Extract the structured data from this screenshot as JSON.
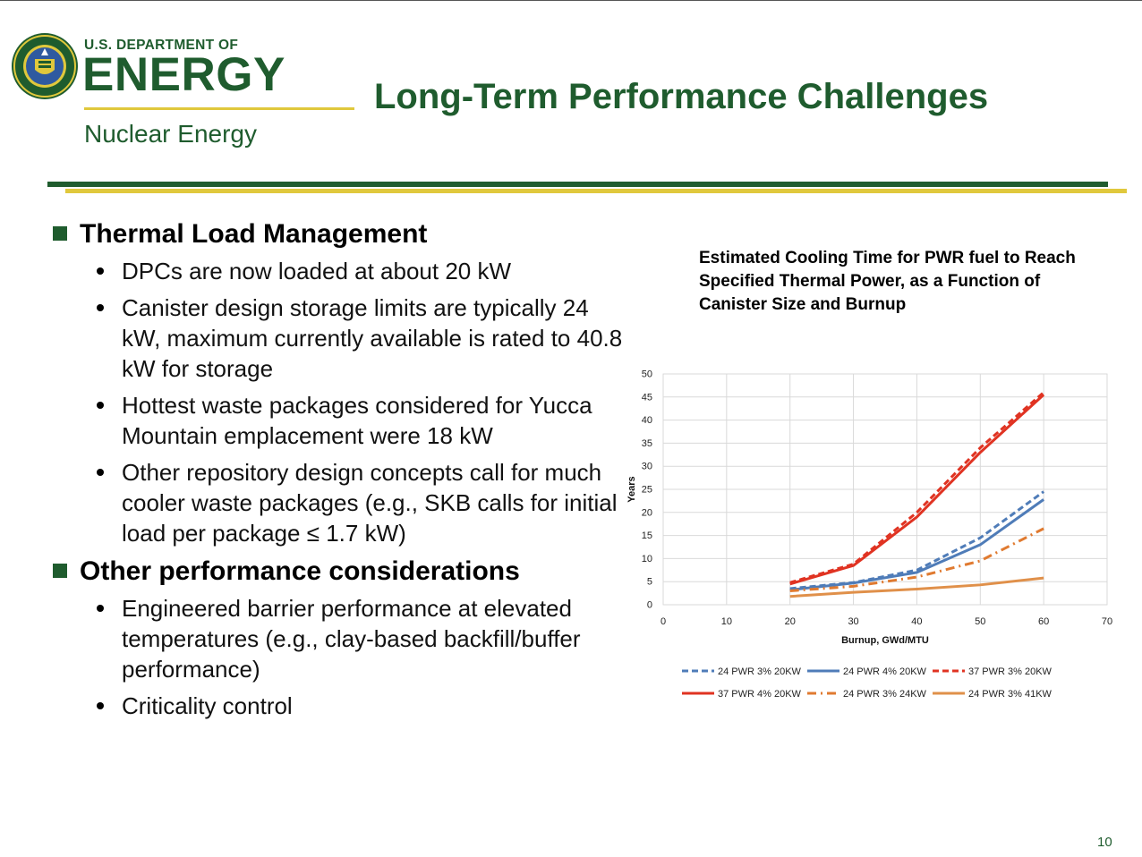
{
  "header": {
    "org_line": "U.S. DEPARTMENT OF",
    "org_name": "ENERGY",
    "office": "Nuclear Energy",
    "title": "Long-Term Performance Challenges"
  },
  "sections": [
    {
      "heading": "Thermal Load Management",
      "items": [
        "DPCs are now loaded at about 20 kW",
        "Canister design storage limits are typically 24 kW, maximum currently available is rated to 40.8 kW for storage",
        "Hottest waste packages considered for Yucca Mountain emplacement were 18 kW",
        "Other repository design concepts call for much cooler waste packages (e.g., SKB calls for initial load per package ≤ 1.7 kW)"
      ]
    },
    {
      "heading": "Other performance considerations",
      "items": [
        "Engineered barrier performance at elevated temperatures (e.g., clay-based backfill/buffer performance)",
        "Criticality control"
      ]
    }
  ],
  "chart_data": {
    "type": "line",
    "title": "Estimated Cooling Time for PWR fuel to Reach Specified Thermal Power, as a Function of Canister Size and Burnup",
    "xlabel": "Burnup, GWd/MTU",
    "ylabel": "Years",
    "xlim": [
      0,
      70
    ],
    "ylim": [
      0,
      50
    ],
    "xticks": [
      "0",
      "10",
      "20",
      "30",
      "40",
      "50",
      "60",
      "70"
    ],
    "yticks": [
      "0",
      "5",
      "10",
      "15",
      "20",
      "25",
      "30",
      "35",
      "40",
      "45",
      "50"
    ],
    "grid": true,
    "legend_position": "bottom",
    "series": [
      {
        "name": "24 PWR 3% 20KW",
        "color": "#4f7cb8",
        "style": "dashed",
        "x": [
          20,
          30,
          40,
          50,
          60
        ],
        "y": [
          3.5,
          4.8,
          7.5,
          14.5,
          24.5
        ]
      },
      {
        "name": "24 PWR 4% 20KW",
        "color": "#4f7cb8",
        "style": "solid",
        "x": [
          20,
          30,
          40,
          50,
          60
        ],
        "y": [
          3.2,
          4.7,
          7.0,
          13.0,
          22.8
        ]
      },
      {
        "name": "37 PWR 3% 20KW",
        "color": "#e03322",
        "style": "dashed",
        "x": [
          20,
          30,
          40,
          50,
          60
        ],
        "y": [
          4.8,
          8.8,
          20.0,
          34.0,
          46.0
        ]
      },
      {
        "name": "37 PWR 4% 20KW",
        "color": "#e03322",
        "style": "solid",
        "x": [
          20,
          30,
          40,
          50,
          60
        ],
        "y": [
          4.5,
          8.5,
          19.0,
          33.0,
          45.5
        ]
      },
      {
        "name": "24 PWR 3% 24KW",
        "color": "#e07a30",
        "style": "dashdot",
        "x": [
          20,
          30,
          40,
          50,
          60
        ],
        "y": [
          3.0,
          4.0,
          6.0,
          9.5,
          16.5
        ]
      },
      {
        "name": "24 PWR 3% 41KW",
        "color": "#e0904a",
        "style": "solid",
        "x": [
          20,
          30,
          40,
          50,
          60
        ],
        "y": [
          1.8,
          2.7,
          3.4,
          4.3,
          5.8
        ]
      }
    ]
  },
  "footer": {
    "page_number": "10"
  }
}
